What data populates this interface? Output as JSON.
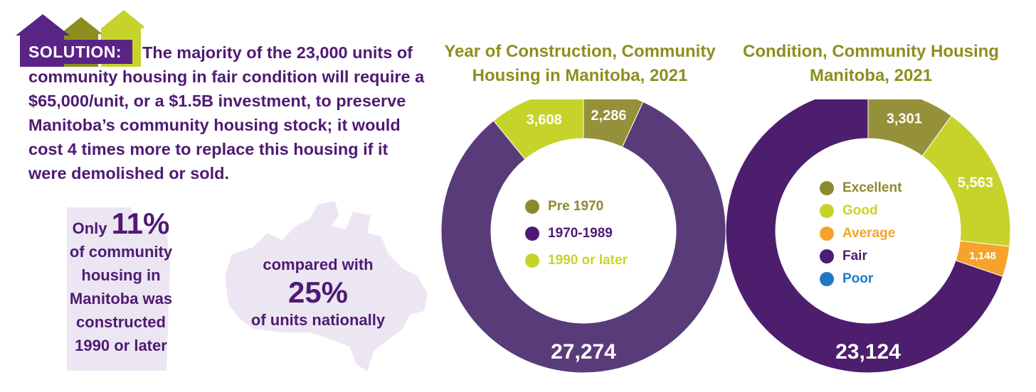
{
  "solution": {
    "tag": "SOLUTION:",
    "text": "The majority of the 23,000 units of community housing in fair condition will require a $65,000/unit, or a $1.5B investment, to preserve Manitoba’s community housing stock; it would cost 4 times more to replace this housing if it were demolished or sold."
  },
  "stat_manitoba": {
    "prefix": "Only",
    "value": "11%",
    "line1": "of community",
    "line2": "housing in",
    "line3": "Manitoba was",
    "line4": "constructed",
    "line5": "1990 or later"
  },
  "stat_national": {
    "line1": "compared with",
    "value": "25%",
    "line2": "of units nationally"
  },
  "colors": {
    "purple_text": "#4f1a73",
    "title_olive": "#8c8f1e",
    "olive": "#94913a",
    "lime": "#c6d32a",
    "purple_year": "#5a3b7a",
    "purple_condition": "#4d1e6e",
    "orange": "#f6a32b",
    "blue": "#1f78c1",
    "map_lilac": "#ece6f2"
  },
  "chart_data": [
    {
      "type": "pie",
      "title": "Year of Construction, Community Housing in Manitoba, 2021",
      "categories": [
        "Pre 1970",
        "1970-1989",
        "1990 or later"
      ],
      "values": [
        2286,
        27274,
        3608
      ],
      "value_labels": [
        "2,286",
        "27,274",
        "3,608"
      ],
      "colors": [
        "#94913a",
        "#5a3b7a",
        "#c6d32a"
      ],
      "legend_colors": [
        "#8c8a2e",
        "#4f1a73",
        "#c6d32a"
      ],
      "donut": true,
      "legend": "center"
    },
    {
      "type": "pie",
      "title": "Condition, Community Housing Manitoba, 2021",
      "categories": [
        "Excellent",
        "Good",
        "Average",
        "Fair",
        "Poor"
      ],
      "values": [
        3301,
        5563,
        1148,
        23124,
        0
      ],
      "value_labels": [
        "3,301",
        "5,563",
        "1,148",
        "23,124",
        ""
      ],
      "colors": [
        "#94913a",
        "#c6d32a",
        "#f6a32b",
        "#4d1e6e",
        "#1f78c1"
      ],
      "legend_colors": [
        "#8c8a2e",
        "#c6d32a",
        "#f6a32b",
        "#4f1a73",
        "#1f78c1"
      ],
      "donut": true,
      "legend": "center"
    }
  ]
}
